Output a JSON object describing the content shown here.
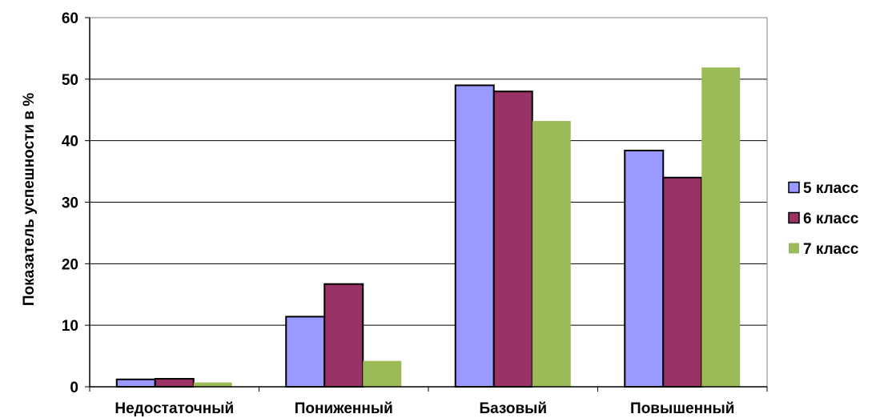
{
  "chart_data": {
    "type": "bar",
    "title": "",
    "xlabel": "",
    "ylabel": "Показатель успешности в %",
    "ylim": [
      0,
      60
    ],
    "yticks": [
      0,
      10,
      20,
      30,
      40,
      50,
      60
    ],
    "grid": true,
    "legend_position": "right",
    "categories": [
      "Недостаточный",
      "Пониженный",
      "Базовый",
      "Повышенный"
    ],
    "series": [
      {
        "name": "5 класс",
        "color": "#9999FF",
        "outlined": true,
        "values": [
          1.2,
          11.4,
          49.0,
          38.4
        ]
      },
      {
        "name": "6 класс",
        "color": "#993366",
        "outlined": true,
        "values": [
          1.3,
          16.7,
          48.0,
          34.0
        ]
      },
      {
        "name": "7 класс",
        "color": "#9BBB59",
        "outlined": false,
        "values": [
          0.7,
          4.2,
          43.2,
          51.9
        ]
      }
    ]
  }
}
